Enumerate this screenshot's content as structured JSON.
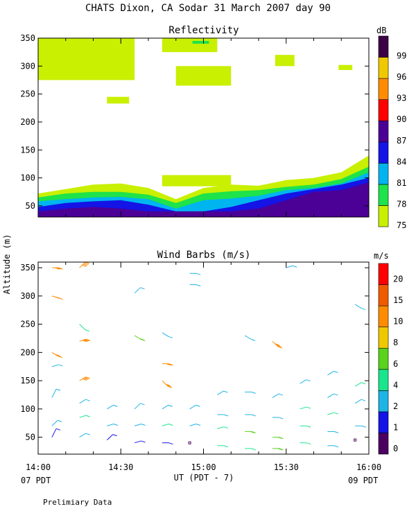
{
  "title": "CHATS Dixon, CA   Sodar  31 March 2007  day  90",
  "footer": {
    "note": "Prelimiary Data",
    "left": "07 PDT",
    "right": "09 PDT"
  },
  "colors": {
    "dB": [
      "#c8f000",
      "#1ee34a",
      "#00b4f0",
      "#1414e6",
      "#4b0096",
      "#ff0000",
      "#ff8c00",
      "#f0c800",
      "#3c0046"
    ],
    "ms": [
      "#4b0060",
      "#1414e6",
      "#1eb4e6",
      "#19e68c",
      "#5ad21e",
      "#f0c800",
      "#ff8c00",
      "#f05a00",
      "#ff0000"
    ]
  },
  "chart_data": [
    {
      "type": "heatmap",
      "title": "Reflectivity",
      "ylabel": "Altitude (m)",
      "xlim": [
        "14:00",
        "16:00"
      ],
      "ylim": [
        30,
        350
      ],
      "yticks": [
        "50",
        "100",
        "150",
        "200",
        "250",
        "300",
        "350"
      ],
      "xticks": [
        "14:00",
        "14:30",
        "15:00",
        "15:30",
        "16:00"
      ],
      "colorbar": {
        "unit": "dB",
        "labels": [
          "75",
          "78",
          "81",
          "84",
          "87",
          "90",
          "93",
          "96",
          "99"
        ]
      },
      "layers": [
        {
          "level": 75,
          "top_m": [
            72,
            80,
            88,
            90,
            82,
            62,
            82,
            88,
            86,
            96,
            100,
            110,
            140
          ],
          "x": [
            "14:00",
            "14:10",
            "14:20",
            "14:30",
            "14:40",
            "14:50",
            "15:00",
            "15:10",
            "15:20",
            "15:30",
            "15:40",
            "15:50",
            "16:00"
          ]
        },
        {
          "level": 78,
          "top_m": [
            65,
            72,
            75,
            75,
            70,
            55,
            72,
            76,
            78,
            84,
            88,
            98,
            120
          ]
        },
        {
          "level": 81,
          "top_m": [
            58,
            62,
            65,
            66,
            62,
            45,
            60,
            63,
            68,
            78,
            82,
            90,
            110
          ]
        },
        {
          "level": 84,
          "top_m": [
            48,
            55,
            58,
            60,
            52,
            40,
            40,
            48,
            60,
            72,
            80,
            88,
            100
          ]
        },
        {
          "level": 87,
          "top_m": [
            40,
            45,
            48,
            45,
            40,
            40,
            40,
            40,
            45,
            60,
            75,
            78,
            92
          ]
        }
      ],
      "patches": [
        {
          "level": 75,
          "time_start": "14:00",
          "time_end": "14:35",
          "alt_min": 275,
          "alt_max": 350
        },
        {
          "level": 75,
          "time_start": "14:45",
          "time_end": "15:05",
          "alt_min": 325,
          "alt_max": 350
        },
        {
          "level": 78,
          "time_start": "14:56",
          "time_end": "15:02",
          "alt_min": 340,
          "alt_max": 345
        },
        {
          "level": 75,
          "time_start": "14:50",
          "time_end": "15:10",
          "alt_min": 265,
          "alt_max": 300
        },
        {
          "level": 75,
          "time_start": "14:25",
          "time_end": "14:33",
          "alt_min": 233,
          "alt_max": 245
        },
        {
          "level": 75,
          "time_start": "15:26",
          "time_end": "15:33",
          "alt_min": 300,
          "alt_max": 320
        },
        {
          "level": 75,
          "time_start": "15:49",
          "time_end": "15:54",
          "alt_min": 293,
          "alt_max": 302
        },
        {
          "level": 75,
          "time_start": "14:45",
          "time_end": "15:10",
          "alt_min": 85,
          "alt_max": 105
        }
      ]
    },
    {
      "type": "scatter",
      "title": "Wind Barbs (m/s)",
      "ylabel": "Altitude (m)",
      "xlabel": "UT  (PDT - 7)",
      "xlim": [
        "14:00",
        "16:00"
      ],
      "ylim": [
        20,
        360
      ],
      "yticks": [
        "50",
        "100",
        "150",
        "200",
        "250",
        "300",
        "350"
      ],
      "xticks": [
        "14:00",
        "14:30",
        "15:00",
        "15:30",
        "16:00"
      ],
      "colorbar": {
        "unit": "m/s",
        "labels": [
          "0",
          "1",
          "2",
          "4",
          "6",
          "8",
          "10",
          "15",
          "20"
        ]
      },
      "barbs": [
        [
          "14:05",
          350,
          90,
          14
        ],
        [
          "14:05",
          300,
          100,
          14
        ],
        [
          "14:05",
          200,
          110,
          14
        ],
        [
          "14:05",
          175,
          80,
          2
        ],
        [
          "14:05",
          120,
          40,
          2
        ],
        [
          "14:05",
          70,
          60,
          2
        ],
        [
          "14:05",
          50,
          40,
          1
        ],
        [
          "14:15",
          350,
          60,
          14
        ],
        [
          "14:15",
          250,
          120,
          5
        ],
        [
          "14:15",
          220,
          80,
          14
        ],
        [
          "14:15",
          150,
          70,
          14
        ],
        [
          "14:15",
          110,
          70,
          3
        ],
        [
          "14:15",
          85,
          80,
          4
        ],
        [
          "14:15",
          50,
          70,
          2
        ],
        [
          "14:25",
          100,
          70,
          2
        ],
        [
          "14:25",
          70,
          80,
          3
        ],
        [
          "14:25",
          45,
          60,
          1
        ],
        [
          "14:35",
          305,
          60,
          2
        ],
        [
          "14:35",
          230,
          110,
          6
        ],
        [
          "14:35",
          100,
          60,
          2
        ],
        [
          "14:35",
          70,
          80,
          3
        ],
        [
          "14:35",
          40,
          80,
          1
        ],
        [
          "14:45",
          235,
          110,
          2
        ],
        [
          "14:45",
          180,
          90,
          10
        ],
        [
          "14:45",
          150,
          120,
          10
        ],
        [
          "14:45",
          100,
          70,
          3
        ],
        [
          "14:45",
          70,
          80,
          4
        ],
        [
          "14:45",
          40,
          90,
          1
        ],
        [
          "14:55",
          340,
          90,
          3
        ],
        [
          "14:55",
          320,
          90,
          3
        ],
        [
          "14:55",
          100,
          70,
          3
        ],
        [
          "14:55",
          70,
          80,
          3
        ],
        [
          "14:55",
          40,
          90,
          0
        ],
        [
          "15:05",
          125,
          70,
          3
        ],
        [
          "15:05",
          90,
          90,
          3
        ],
        [
          "15:05",
          65,
          80,
          4
        ],
        [
          "15:05",
          35,
          90,
          4
        ],
        [
          "15:15",
          230,
          110,
          2
        ],
        [
          "15:15",
          130,
          90,
          3
        ],
        [
          "15:15",
          90,
          90,
          3
        ],
        [
          "15:15",
          60,
          90,
          6
        ],
        [
          "15:15",
          30,
          90,
          5
        ],
        [
          "15:25",
          220,
          120,
          14
        ],
        [
          "15:25",
          120,
          70,
          3
        ],
        [
          "15:25",
          85,
          90,
          3
        ],
        [
          "15:25",
          50,
          90,
          6
        ],
        [
          "15:25",
          30,
          90,
          6
        ],
        [
          "15:30",
          350,
          80,
          3
        ],
        [
          "15:35",
          145,
          70,
          3
        ],
        [
          "15:35",
          100,
          80,
          4
        ],
        [
          "15:35",
          70,
          90,
          4
        ],
        [
          "15:35",
          40,
          90,
          4
        ],
        [
          "15:45",
          160,
          70,
          3
        ],
        [
          "15:45",
          120,
          70,
          3
        ],
        [
          "15:45",
          90,
          80,
          4
        ],
        [
          "15:45",
          60,
          90,
          3
        ],
        [
          "15:45",
          35,
          90,
          3
        ],
        [
          "15:55",
          285,
          110,
          2
        ],
        [
          "15:55",
          140,
          70,
          4
        ],
        [
          "15:55",
          110,
          70,
          3
        ],
        [
          "15:55",
          70,
          90,
          2
        ],
        [
          "15:55",
          45,
          90,
          0
        ]
      ]
    }
  ]
}
